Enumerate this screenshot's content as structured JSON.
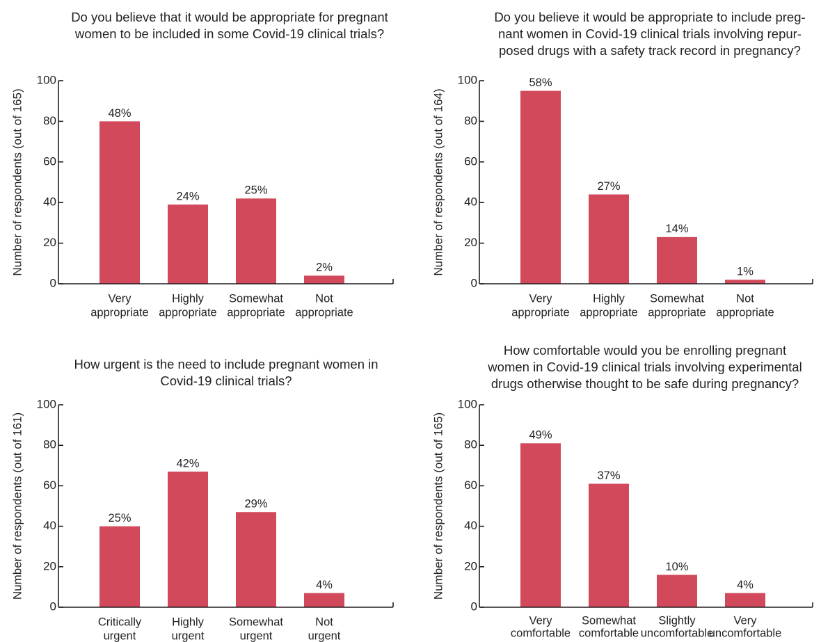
{
  "bar_color": "#d1495b",
  "chart_data": [
    {
      "type": "bar",
      "title": [
        "Do you believe that it would be appropriate for pregnant",
        "women to be included in some Covid-19 clinical trials?"
      ],
      "ylabel": "Number of respondents (out of 165)",
      "ylim": [
        0,
        100
      ],
      "yticks": [
        0,
        20,
        40,
        60,
        80,
        100
      ],
      "categories": [
        [
          "Very",
          "appropriate"
        ],
        [
          "Highly",
          "appropriate"
        ],
        [
          "Somewhat",
          "appropriate"
        ],
        [
          "Not",
          "appropriate"
        ]
      ],
      "values": [
        80,
        39,
        42,
        4
      ],
      "data_labels": [
        "48%",
        "24%",
        "25%",
        "2%"
      ]
    },
    {
      "type": "bar",
      "title": [
        "Do you believe it would be appropriate to include preg-",
        "nant women in Covid-19 clinical trials involving repur-",
        "posed drugs with a safety track record in pregnancy?"
      ],
      "ylabel": "Number of respondents (out of 164)",
      "ylim": [
        0,
        100
      ],
      "yticks": [
        0,
        20,
        40,
        60,
        80,
        100
      ],
      "categories": [
        [
          "Very",
          "appropriate"
        ],
        [
          "Highly",
          "appropriate"
        ],
        [
          "Somewhat",
          "appropriate"
        ],
        [
          "Not",
          "appropriate"
        ]
      ],
      "values": [
        95,
        44,
        23,
        2
      ],
      "data_labels": [
        "58%",
        "27%",
        "14%",
        "1%"
      ]
    },
    {
      "type": "bar",
      "title": [
        "How urgent is the need to include pregnant women in",
        "Covid-19 clinical trials?"
      ],
      "ylabel": "Number of respondents (out of 161)",
      "ylim": [
        0,
        100
      ],
      "yticks": [
        0,
        20,
        40,
        60,
        80,
        100
      ],
      "categories": [
        [
          "Critically",
          "urgent"
        ],
        [
          "Highly",
          "urgent"
        ],
        [
          "Somewhat",
          "urgent"
        ],
        [
          "Not",
          "urgent"
        ]
      ],
      "values": [
        40,
        67,
        47,
        7
      ],
      "data_labels": [
        "25%",
        "42%",
        "29%",
        "4%"
      ]
    },
    {
      "type": "bar",
      "title": [
        "How comfortable would you be enrolling pregnant",
        "women in Covid-19 clinical trials involving experimental",
        "drugs otherwise thought to be safe during pregnancy?"
      ],
      "ylabel": "Number of respondents (out of 165)",
      "ylim": [
        0,
        100
      ],
      "yticks": [
        0,
        20,
        40,
        60,
        80,
        100
      ],
      "categories": [
        [
          "Very",
          "comfortable"
        ],
        [
          "Somewhat",
          "comfortable"
        ],
        [
          "Slightly",
          "uncomfortable"
        ],
        [
          "Very",
          "uncomfortable"
        ]
      ],
      "values": [
        81,
        61,
        16,
        7
      ],
      "data_labels": [
        "49%",
        "37%",
        "10%",
        "4%"
      ]
    }
  ]
}
